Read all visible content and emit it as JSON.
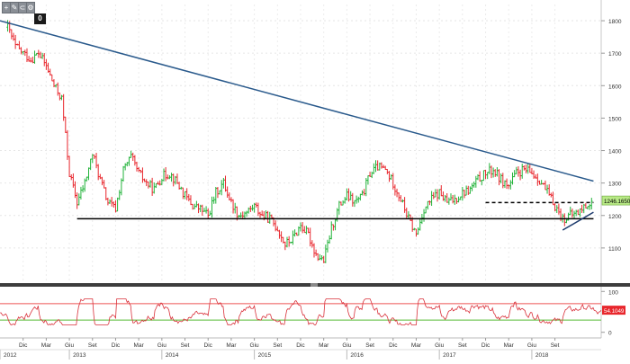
{
  "toolbar": {
    "buttons": [
      {
        "icon": "crosshair-icon",
        "glyph": "+"
      },
      {
        "icon": "pencil-icon",
        "glyph": "✎"
      },
      {
        "icon": "magnet-icon",
        "glyph": "⊂"
      },
      {
        "icon": "gear-icon",
        "glyph": "⚙"
      }
    ],
    "zero_label": "0"
  },
  "chart_data": [
    {
      "type": "bar",
      "subtype": "ohlc",
      "title": "",
      "ylim": [
        1000,
        1850
      ],
      "y_ticks": [
        1100,
        1200,
        1300,
        1400,
        1500,
        1600,
        1700,
        1800
      ],
      "y_tick_labels": [
        "1100",
        "1200",
        "1300",
        "1400",
        "1500",
        "1600",
        "1700",
        "1800"
      ],
      "grid": true,
      "up_color": "#22b33a",
      "down_color": "#e8262c",
      "last_value_label": "1246.1650",
      "last_value": 1246.165,
      "series": [
        {
          "x": "2011-10",
          "y": 1780
        },
        {
          "x": "2011-11",
          "y": 1720
        },
        {
          "x": "2011-12",
          "y": 1700
        },
        {
          "x": "2012-01",
          "y": 1680
        },
        {
          "x": "2012-02",
          "y": 1700
        },
        {
          "x": "2012-03",
          "y": 1660
        },
        {
          "x": "2012-04",
          "y": 1600
        },
        {
          "x": "2012-05",
          "y": 1560
        },
        {
          "x": "2012-06",
          "y": 1330
        },
        {
          "x": "2012-07",
          "y": 1240
        },
        {
          "x": "2012-08",
          "y": 1300
        },
        {
          "x": "2012-09",
          "y": 1390
        },
        {
          "x": "2012-10",
          "y": 1310
        },
        {
          "x": "2012-11",
          "y": 1240
        },
        {
          "x": "2012-12",
          "y": 1220
        },
        {
          "x": "2013-01",
          "y": 1340
        },
        {
          "x": "2013-02",
          "y": 1380
        },
        {
          "x": "2013-03",
          "y": 1330
        },
        {
          "x": "2013-04",
          "y": 1300
        },
        {
          "x": "2013-05",
          "y": 1280
        },
        {
          "x": "2013-06",
          "y": 1320
        },
        {
          "x": "2013-07",
          "y": 1330
        },
        {
          "x": "2013-08",
          "y": 1300
        },
        {
          "x": "2013-09",
          "y": 1260
        },
        {
          "x": "2013-10",
          "y": 1230
        },
        {
          "x": "2013-11",
          "y": 1220
        },
        {
          "x": "2013-12",
          "y": 1200
        },
        {
          "x": "2014-01",
          "y": 1270
        },
        {
          "x": "2014-02",
          "y": 1300
        },
        {
          "x": "2014-03",
          "y": 1240
        },
        {
          "x": "2014-04",
          "y": 1200
        },
        {
          "x": "2014-05",
          "y": 1210
        },
        {
          "x": "2014-06",
          "y": 1230
        },
        {
          "x": "2014-07",
          "y": 1200
        },
        {
          "x": "2014-08",
          "y": 1190
        },
        {
          "x": "2014-09",
          "y": 1160
        },
        {
          "x": "2014-10",
          "y": 1110
        },
        {
          "x": "2014-11",
          "y": 1130
        },
        {
          "x": "2014-12",
          "y": 1170
        },
        {
          "x": "2015-01",
          "y": 1140
        },
        {
          "x": "2015-02",
          "y": 1080
        },
        {
          "x": "2015-03",
          "y": 1060
        },
        {
          "x": "2015-04",
          "y": 1160
        },
        {
          "x": "2015-05",
          "y": 1230
        },
        {
          "x": "2015-06",
          "y": 1260
        },
        {
          "x": "2015-07",
          "y": 1240
        },
        {
          "x": "2015-08",
          "y": 1260
        },
        {
          "x": "2015-09",
          "y": 1330
        },
        {
          "x": "2015-10",
          "y": 1350
        },
        {
          "x": "2015-11",
          "y": 1340
        },
        {
          "x": "2015-12",
          "y": 1300
        },
        {
          "x": "2016-01",
          "y": 1250
        },
        {
          "x": "2016-02",
          "y": 1190
        },
        {
          "x": "2016-03",
          "y": 1140
        },
        {
          "x": "2016-04",
          "y": 1220
        },
        {
          "x": "2016-05",
          "y": 1250
        },
        {
          "x": "2016-06",
          "y": 1270
        },
        {
          "x": "2016-07",
          "y": 1240
        },
        {
          "x": "2016-08",
          "y": 1250
        },
        {
          "x": "2016-09",
          "y": 1270
        },
        {
          "x": "2016-10",
          "y": 1280
        },
        {
          "x": "2016-11",
          "y": 1310
        },
        {
          "x": "2016-12",
          "y": 1330
        },
        {
          "x": "2017-01",
          "y": 1340
        },
        {
          "x": "2017-02",
          "y": 1310
        },
        {
          "x": "2017-03",
          "y": 1290
        },
        {
          "x": "2017-04",
          "y": 1330
        },
        {
          "x": "2017-05",
          "y": 1340
        },
        {
          "x": "2017-06",
          "y": 1330
        },
        {
          "x": "2017-07",
          "y": 1310
        },
        {
          "x": "2017-08",
          "y": 1270
        },
        {
          "x": "2017-09",
          "y": 1230
        },
        {
          "x": "2017-10",
          "y": 1190
        },
        {
          "x": "2017-11",
          "y": 1200
        },
        {
          "x": "2017-12",
          "y": 1210
        },
        {
          "x": "2018-01",
          "y": 1230
        },
        {
          "x": "2018-02",
          "y": 1246
        }
      ],
      "trendlines": [
        {
          "name": "descending-resistance",
          "color": "#2a5a8c",
          "points": [
            {
              "x": "2011-09",
              "y": 1800
            },
            {
              "x": "2018-02",
              "y": 1306
            }
          ]
        },
        {
          "name": "horizontal-support",
          "color": "#000000",
          "points": [
            {
              "x": "2012-07",
              "y": 1190
            },
            {
              "x": "2018-02",
              "y": 1190
            }
          ]
        },
        {
          "name": "dashed-resistance",
          "color": "#000000",
          "dash": true,
          "points": [
            {
              "x": "2016-12",
              "y": 1240
            },
            {
              "x": "2018-02",
              "y": 1240
            }
          ]
        },
        {
          "name": "rising-support",
          "color": "#1e3c6e",
          "points": [
            {
              "x": "2017-10",
              "y": 1155
            },
            {
              "x": "2018-02",
              "y": 1210
            }
          ]
        }
      ]
    },
    {
      "type": "line",
      "title": "",
      "ylim": [
        -5,
        105
      ],
      "y_ticks": [
        0,
        100
      ],
      "y_tick_labels": [
        "0",
        "100"
      ],
      "levels": [
        {
          "value": 30,
          "color": "#55bb33"
        },
        {
          "value": 70,
          "color": "#ee5555"
        }
      ],
      "line_color": "#d9303a",
      "last_value_label": "54.1049",
      "last_value": 54.1049
    }
  ],
  "x_axis": {
    "months": [
      {
        "x": "2011-12",
        "label": "Dic"
      },
      {
        "x": "2012-03",
        "label": "Mar"
      },
      {
        "x": "2012-06",
        "label": "Giu"
      },
      {
        "x": "2012-09",
        "label": "Set"
      },
      {
        "x": "2012-12",
        "label": "Dic"
      },
      {
        "x": "2013-03",
        "label": "Mar"
      },
      {
        "x": "2013-06",
        "label": "Giu"
      },
      {
        "x": "2013-09",
        "label": "Set"
      },
      {
        "x": "2013-12",
        "label": "Dic"
      },
      {
        "x": "2014-03",
        "label": "Mar"
      },
      {
        "x": "2014-06",
        "label": "Giu"
      },
      {
        "x": "2014-09",
        "label": "Set"
      },
      {
        "x": "2014-12",
        "label": "Dic"
      },
      {
        "x": "2015-03",
        "label": "Mar"
      },
      {
        "x": "2015-06",
        "label": "Giu"
      },
      {
        "x": "2015-09",
        "label": "Set"
      },
      {
        "x": "2015-12",
        "label": "Dic"
      },
      {
        "x": "2016-03",
        "label": "Mar"
      },
      {
        "x": "2016-06",
        "label": "Giu"
      },
      {
        "x": "2016-09",
        "label": "Set"
      },
      {
        "x": "2016-12",
        "label": "Dic"
      },
      {
        "x": "2017-03",
        "label": "Mar"
      },
      {
        "x": "2017-06",
        "label": "Giu"
      },
      {
        "x": "2017-09",
        "label": "Set"
      }
    ],
    "years": [
      {
        "x": "2011-09",
        "label": "2012"
      },
      {
        "x": "2012-06",
        "label": "2013"
      },
      {
        "x": "2013-06",
        "label": "2014"
      },
      {
        "x": "2014-06",
        "label": "2015"
      },
      {
        "x": "2015-06",
        "label": "2016"
      },
      {
        "x": "2016-06",
        "label": "2017"
      },
      {
        "x": "2017-06",
        "label": "2018"
      }
    ]
  }
}
